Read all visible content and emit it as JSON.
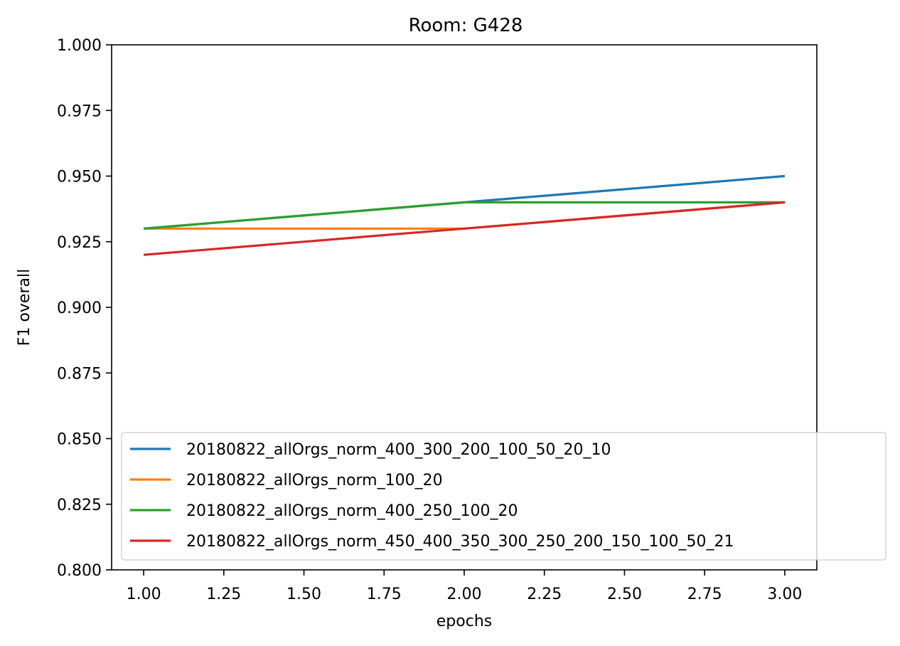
{
  "chart_data": {
    "type": "line",
    "title": "Room: G428",
    "xlabel": "epochs",
    "ylabel": "F1 overall",
    "xlim": [
      0.9,
      3.1
    ],
    "ylim": [
      0.8,
      1.0
    ],
    "x_ticks": [
      "1.00",
      "1.25",
      "1.50",
      "1.75",
      "2.00",
      "2.25",
      "2.50",
      "2.75",
      "3.00"
    ],
    "y_ticks": [
      "0.800",
      "0.825",
      "0.850",
      "0.875",
      "0.900",
      "0.925",
      "0.950",
      "0.975",
      "1.000"
    ],
    "x": [
      1,
      2,
      3
    ],
    "grid": false,
    "legend_position": "lower-right",
    "series": [
      {
        "name": "20180822_allOrgs_norm_400_300_200_100_50_20_10",
        "color": "#1f77b4",
        "values": [
          0.93,
          0.94,
          0.95
        ]
      },
      {
        "name": "20180822_allOrgs_norm_100_20",
        "color": "#ff7f0e",
        "values": [
          0.93,
          0.93,
          0.94
        ]
      },
      {
        "name": "20180822_allOrgs_norm_400_250_100_20",
        "color": "#2ca02c",
        "values": [
          0.93,
          0.94,
          0.94
        ]
      },
      {
        "name": "20180822_allOrgs_norm_450_400_350_300_250_200_150_100_50_21",
        "color": "#d62728",
        "values": [
          0.92,
          0.93,
          0.94
        ]
      }
    ]
  }
}
